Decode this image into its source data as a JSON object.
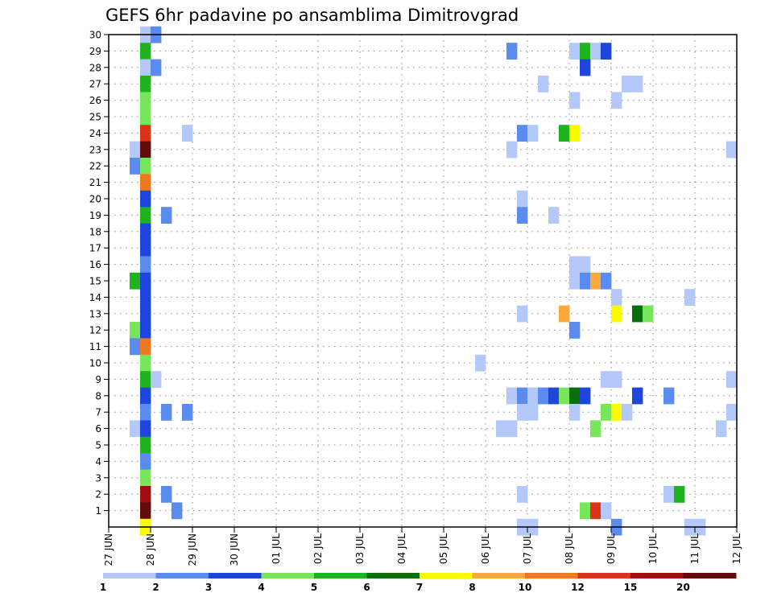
{
  "chart_data": {
    "type": "heatmap",
    "title": "GEFS 6hr padavine po ansamblima Dimitrovgrad",
    "x_tick_labels": [
      "27 JUN",
      "28 JUN",
      "29 JUN",
      "30 JUN",
      "01 JUL",
      "02 JUL",
      "03 JUL",
      "04 JUL",
      "05 JUL",
      "06 JUL",
      "07 JUL",
      "08 JUL",
      "09 JUL",
      "10 JUL",
      "11 JUL",
      "12 JUL"
    ],
    "y_tick_labels": [
      "1",
      "2",
      "3",
      "4",
      "5",
      "6",
      "7",
      "8",
      "9",
      "10",
      "11",
      "12",
      "13",
      "14",
      "15",
      "16",
      "17",
      "18",
      "19",
      "20",
      "21",
      "22",
      "23",
      "24",
      "25",
      "26",
      "27",
      "28",
      "29",
      "30"
    ],
    "x_range_days": [
      0,
      15
    ],
    "y_range_members": [
      0,
      30
    ],
    "grid": "dotted",
    "legend": {
      "position": "bottom",
      "labels": [
        "1",
        "2",
        "3",
        "4",
        "5",
        "6",
        "7",
        "8",
        "10",
        "12",
        "15",
        "20"
      ],
      "colors": [
        "#b4c8fa",
        "#5a8cf0",
        "#1e46dc",
        "#78e65a",
        "#1eb41e",
        "#0a6e0a",
        "#fafa00",
        "#faaa3c",
        "#f0781e",
        "#dc3218",
        "#a00f0f",
        "#640a0a"
      ]
    },
    "cells_note": "x_day = days since 27 JUN 00Z, 6-hour steps; member = ensemble row; class = legend color index 0-11",
    "cells": [
      {
        "x_day": 0.75,
        "member": 30,
        "class": 0
      },
      {
        "x_day": 1.0,
        "member": 30,
        "class": 1
      },
      {
        "x_day": 0.75,
        "member": 29,
        "class": 4
      },
      {
        "x_day": 0.75,
        "member": 28,
        "class": 0
      },
      {
        "x_day": 1.0,
        "member": 28,
        "class": 1
      },
      {
        "x_day": 0.75,
        "member": 27,
        "class": 4
      },
      {
        "x_day": 0.75,
        "member": 26,
        "class": 3
      },
      {
        "x_day": 0.75,
        "member": 25,
        "class": 3
      },
      {
        "x_day": 0.75,
        "member": 24,
        "class": 9
      },
      {
        "x_day": 0.5,
        "member": 23,
        "class": 0
      },
      {
        "x_day": 0.75,
        "member": 23,
        "class": 11
      },
      {
        "x_day": 0.5,
        "member": 22,
        "class": 1
      },
      {
        "x_day": 0.75,
        "member": 22,
        "class": 3
      },
      {
        "x_day": 0.75,
        "member": 21,
        "class": 8
      },
      {
        "x_day": 0.75,
        "member": 20,
        "class": 2
      },
      {
        "x_day": 0.75,
        "member": 19,
        "class": 4
      },
      {
        "x_day": 1.25,
        "member": 19,
        "class": 1
      },
      {
        "x_day": 0.75,
        "member": 18,
        "class": 2
      },
      {
        "x_day": 0.75,
        "member": 17,
        "class": 2
      },
      {
        "x_day": 0.75,
        "member": 16,
        "class": 1
      },
      {
        "x_day": 0.5,
        "member": 15,
        "class": 4
      },
      {
        "x_day": 0.75,
        "member": 15,
        "class": 2
      },
      {
        "x_day": 0.75,
        "member": 14,
        "class": 2
      },
      {
        "x_day": 0.75,
        "member": 13,
        "class": 2
      },
      {
        "x_day": 0.5,
        "member": 12,
        "class": 3
      },
      {
        "x_day": 0.75,
        "member": 12,
        "class": 2
      },
      {
        "x_day": 0.5,
        "member": 11,
        "class": 1
      },
      {
        "x_day": 0.75,
        "member": 11,
        "class": 8
      },
      {
        "x_day": 0.75,
        "member": 10,
        "class": 3
      },
      {
        "x_day": 0.75,
        "member": 9,
        "class": 4
      },
      {
        "x_day": 1.0,
        "member": 9,
        "class": 0
      },
      {
        "x_day": 0.75,
        "member": 8,
        "class": 2
      },
      {
        "x_day": 0.75,
        "member": 7,
        "class": 1
      },
      {
        "x_day": 1.25,
        "member": 7,
        "class": 1
      },
      {
        "x_day": 1.75,
        "member": 7,
        "class": 1
      },
      {
        "x_day": 0.5,
        "member": 6,
        "class": 0
      },
      {
        "x_day": 0.75,
        "member": 6,
        "class": 2
      },
      {
        "x_day": 0.75,
        "member": 5,
        "class": 4
      },
      {
        "x_day": 0.75,
        "member": 4,
        "class": 1
      },
      {
        "x_day": 0.75,
        "member": 3,
        "class": 3
      },
      {
        "x_day": 0.75,
        "member": 2,
        "class": 10
      },
      {
        "x_day": 1.25,
        "member": 2,
        "class": 1
      },
      {
        "x_day": 0.75,
        "member": 1,
        "class": 11
      },
      {
        "x_day": 1.5,
        "member": 1,
        "class": 1
      },
      {
        "x_day": 0.75,
        "member": 0,
        "class": 6
      },
      {
        "x_day": 1.75,
        "member": 24,
        "class": 0
      },
      {
        "x_day": 8.75,
        "member": 10,
        "class": 0
      },
      {
        "x_day": 9.5,
        "member": 29,
        "class": 1
      },
      {
        "x_day": 9.5,
        "member": 23,
        "class": 0
      },
      {
        "x_day": 9.25,
        "member": 6,
        "class": 0
      },
      {
        "x_day": 9.5,
        "member": 6,
        "class": 0
      },
      {
        "x_day": 9.5,
        "member": 8,
        "class": 0
      },
      {
        "x_day": 9.75,
        "member": 24,
        "class": 1
      },
      {
        "x_day": 10.0,
        "member": 24,
        "class": 0
      },
      {
        "x_day": 9.75,
        "member": 20,
        "class": 0
      },
      {
        "x_day": 9.75,
        "member": 19,
        "class": 1
      },
      {
        "x_day": 9.75,
        "member": 13,
        "class": 0
      },
      {
        "x_day": 9.75,
        "member": 8,
        "class": 1
      },
      {
        "x_day": 10.0,
        "member": 8,
        "class": 0
      },
      {
        "x_day": 10.25,
        "member": 8,
        "class": 1
      },
      {
        "x_day": 10.5,
        "member": 8,
        "class": 2
      },
      {
        "x_day": 10.75,
        "member": 8,
        "class": 3
      },
      {
        "x_day": 11.0,
        "member": 8,
        "class": 5
      },
      {
        "x_day": 11.25,
        "member": 8,
        "class": 2
      },
      {
        "x_day": 9.75,
        "member": 7,
        "class": 0
      },
      {
        "x_day": 10.0,
        "member": 7,
        "class": 0
      },
      {
        "x_day": 9.75,
        "member": 2,
        "class": 0
      },
      {
        "x_day": 9.75,
        "member": 0,
        "class": 0
      },
      {
        "x_day": 10.0,
        "member": 0,
        "class": 0
      },
      {
        "x_day": 10.25,
        "member": 27,
        "class": 0
      },
      {
        "x_day": 10.5,
        "member": 19,
        "class": 0
      },
      {
        "x_day": 10.75,
        "member": 24,
        "class": 4
      },
      {
        "x_day": 11.0,
        "member": 24,
        "class": 6
      },
      {
        "x_day": 10.75,
        "member": 13,
        "class": 7
      },
      {
        "x_day": 11.0,
        "member": 29,
        "class": 0
      },
      {
        "x_day": 11.25,
        "member": 29,
        "class": 4
      },
      {
        "x_day": 11.5,
        "member": 29,
        "class": 0
      },
      {
        "x_day": 11.75,
        "member": 29,
        "class": 2
      },
      {
        "x_day": 11.25,
        "member": 28,
        "class": 2
      },
      {
        "x_day": 11.0,
        "member": 26,
        "class": 0
      },
      {
        "x_day": 11.0,
        "member": 16,
        "class": 0
      },
      {
        "x_day": 11.25,
        "member": 16,
        "class": 0
      },
      {
        "x_day": 11.0,
        "member": 15,
        "class": 0
      },
      {
        "x_day": 11.25,
        "member": 15,
        "class": 1
      },
      {
        "x_day": 11.5,
        "member": 15,
        "class": 7
      },
      {
        "x_day": 11.75,
        "member": 15,
        "class": 1
      },
      {
        "x_day": 11.0,
        "member": 12,
        "class": 1
      },
      {
        "x_day": 11.0,
        "member": 7,
        "class": 0
      },
      {
        "x_day": 11.5,
        "member": 6,
        "class": 3
      },
      {
        "x_day": 11.25,
        "member": 1,
        "class": 3
      },
      {
        "x_day": 11.5,
        "member": 1,
        "class": 9
      },
      {
        "x_day": 11.75,
        "member": 1,
        "class": 0
      },
      {
        "x_day": 11.75,
        "member": 7,
        "class": 3
      },
      {
        "x_day": 12.0,
        "member": 7,
        "class": 6
      },
      {
        "x_day": 12.25,
        "member": 7,
        "class": 0
      },
      {
        "x_day": 11.75,
        "member": 9,
        "class": 0
      },
      {
        "x_day": 12.0,
        "member": 9,
        "class": 0
      },
      {
        "x_day": 12.0,
        "member": 26,
        "class": 0
      },
      {
        "x_day": 12.0,
        "member": 14,
        "class": 0
      },
      {
        "x_day": 12.0,
        "member": 13,
        "class": 6
      },
      {
        "x_day": 12.0,
        "member": 0,
        "class": 1
      },
      {
        "x_day": 12.25,
        "member": 27,
        "class": 0
      },
      {
        "x_day": 12.5,
        "member": 27,
        "class": 0
      },
      {
        "x_day": 12.5,
        "member": 13,
        "class": 5
      },
      {
        "x_day": 12.75,
        "member": 13,
        "class": 3
      },
      {
        "x_day": 12.5,
        "member": 8,
        "class": 2
      },
      {
        "x_day": 13.25,
        "member": 8,
        "class": 1
      },
      {
        "x_day": 13.25,
        "member": 2,
        "class": 0
      },
      {
        "x_day": 13.5,
        "member": 2,
        "class": 4
      },
      {
        "x_day": 13.75,
        "member": 14,
        "class": 0
      },
      {
        "x_day": 13.75,
        "member": 0,
        "class": 0
      },
      {
        "x_day": 14.0,
        "member": 0,
        "class": 0
      },
      {
        "x_day": 14.5,
        "member": 6,
        "class": 0
      },
      {
        "x_day": 14.75,
        "member": 23,
        "class": 0
      },
      {
        "x_day": 14.75,
        "member": 9,
        "class": 0
      },
      {
        "x_day": 14.75,
        "member": 7,
        "class": 0
      }
    ]
  }
}
